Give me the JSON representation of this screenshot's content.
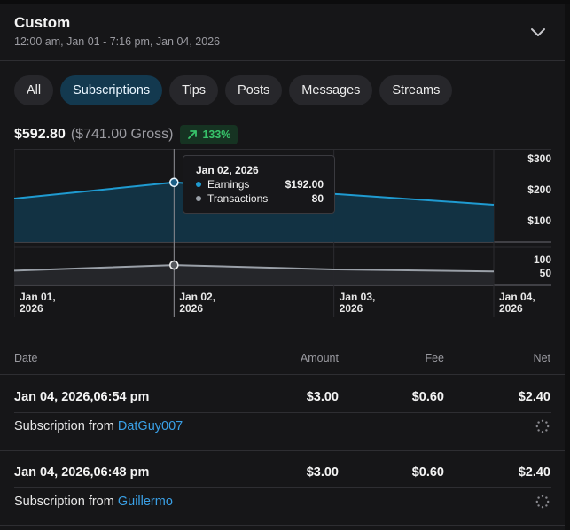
{
  "header": {
    "title": "Custom",
    "range": "12:00 am, Jan 01 - 7:16 pm, Jan 04, 2026"
  },
  "tabs": [
    {
      "label": "All"
    },
    {
      "label": "Subscriptions"
    },
    {
      "label": "Tips"
    },
    {
      "label": "Posts"
    },
    {
      "label": "Messages"
    },
    {
      "label": "Streams"
    }
  ],
  "active_tab": "Subscriptions",
  "totals": {
    "net": "$592.80",
    "gross": "($741.00 Gross)",
    "change": "133%"
  },
  "colors": {
    "accent": "#3aa0e6",
    "earnings_line": "#1f9bd1",
    "transactions_line": "#9aa0a8",
    "positive": "#37c26a"
  },
  "chart_data": {
    "type": "area",
    "x": [
      "Jan 01, 2026",
      "Jan 02, 2026",
      "Jan 03, 2026",
      "Jan 04, 2026"
    ],
    "series": [
      {
        "name": "Earnings",
        "values": [
          140,
          192,
          155,
          120
        ]
      },
      {
        "name": "Transactions",
        "values": [
          58,
          80,
          63,
          55
        ]
      }
    ],
    "earnings_ticks": [
      "$300",
      "$200",
      "$100"
    ],
    "earnings_ylim": [
      0,
      300
    ],
    "transactions_ticks": [
      "100",
      "50"
    ],
    "transactions_ylim": [
      0,
      150
    ],
    "x_tick_labels": [
      [
        "Jan 01,",
        "2026"
      ],
      [
        "Jan 02,",
        "2026"
      ],
      [
        "Jan 03,",
        "2026"
      ],
      [
        "Jan 04,",
        "2026"
      ]
    ],
    "highlight_index": 1
  },
  "tooltip": {
    "date": "Jan 02, 2026",
    "earnings_label": "Earnings",
    "earnings_value": "$192.00",
    "transactions_label": "Transactions",
    "transactions_value": "80"
  },
  "table": {
    "headers": {
      "date": "Date",
      "amount": "Amount",
      "fee": "Fee",
      "net": "Net"
    },
    "rows": [
      {
        "date": "Jan 04, 2026,06:54 pm",
        "amount": "$3.00",
        "fee": "$0.60",
        "net": "$2.40",
        "desc_prefix": "Subscription from",
        "user": "DatGuy007"
      },
      {
        "date": "Jan 04, 2026,06:48 pm",
        "amount": "$3.00",
        "fee": "$0.60",
        "net": "$2.40",
        "desc_prefix": "Subscription from",
        "user": "Guillermo"
      }
    ]
  }
}
